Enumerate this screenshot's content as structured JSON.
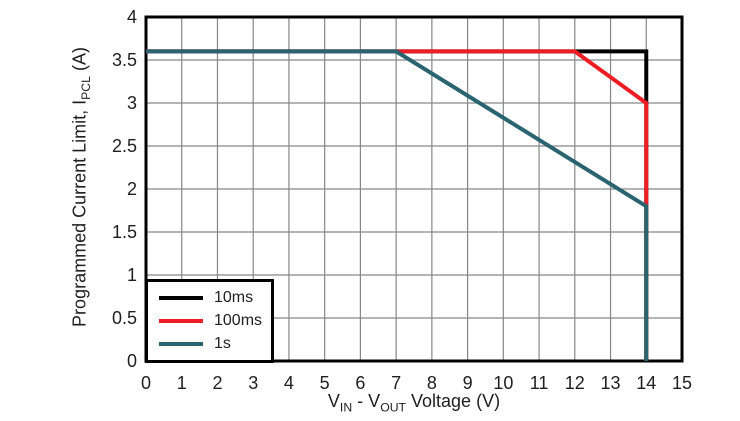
{
  "chart_data": {
    "type": "line",
    "title": "",
    "xlabel_parts": [
      {
        "text": "V"
      },
      {
        "text": "IN",
        "sub": true
      },
      {
        "text": " - V"
      },
      {
        "text": "OUT",
        "sub": true
      },
      {
        "text": " Voltage (V)"
      }
    ],
    "ylabel_parts": [
      {
        "text": "Programmed Current Limit, I"
      },
      {
        "text": "PCL",
        "sub": true
      },
      {
        "text": " (A)"
      }
    ],
    "xlim": [
      0,
      15
    ],
    "ylim": [
      0,
      4
    ],
    "x_ticks": [
      0,
      1,
      2,
      3,
      4,
      5,
      6,
      7,
      8,
      9,
      10,
      11,
      12,
      13,
      14,
      15
    ],
    "x_tick_labels": [
      "0",
      "1",
      "2",
      "3",
      "4",
      "5",
      "6",
      "7",
      "8",
      "9",
      "10",
      "11",
      "12",
      "13",
      "14",
      "15"
    ],
    "y_ticks": [
      0,
      0.5,
      1,
      1.5,
      2,
      2.5,
      3,
      3.5,
      4
    ],
    "y_tick_labels": [
      "0",
      "0.5",
      "1",
      "1.5",
      "2",
      "2.5",
      "3",
      "3.5",
      "4"
    ],
    "grid": true,
    "legend_position": "bottom-left",
    "series": [
      {
        "name": "10ms",
        "color": "#000000",
        "points": [
          [
            0,
            3.6
          ],
          [
            14,
            3.6
          ],
          [
            14,
            0
          ]
        ]
      },
      {
        "name": "100ms",
        "color": "#ee1c23",
        "points": [
          [
            0,
            3.6
          ],
          [
            12,
            3.6
          ],
          [
            14,
            3.0
          ],
          [
            14,
            0
          ]
        ]
      },
      {
        "name": "1s",
        "color": "#2a6470",
        "points": [
          [
            0,
            3.6
          ],
          [
            7,
            3.6
          ],
          [
            14,
            1.8
          ],
          [
            14,
            0
          ]
        ]
      }
    ]
  },
  "colors": {
    "background": "#ffffff",
    "grid": "#878787",
    "border": "#000000",
    "text": "#1f1f1f"
  }
}
